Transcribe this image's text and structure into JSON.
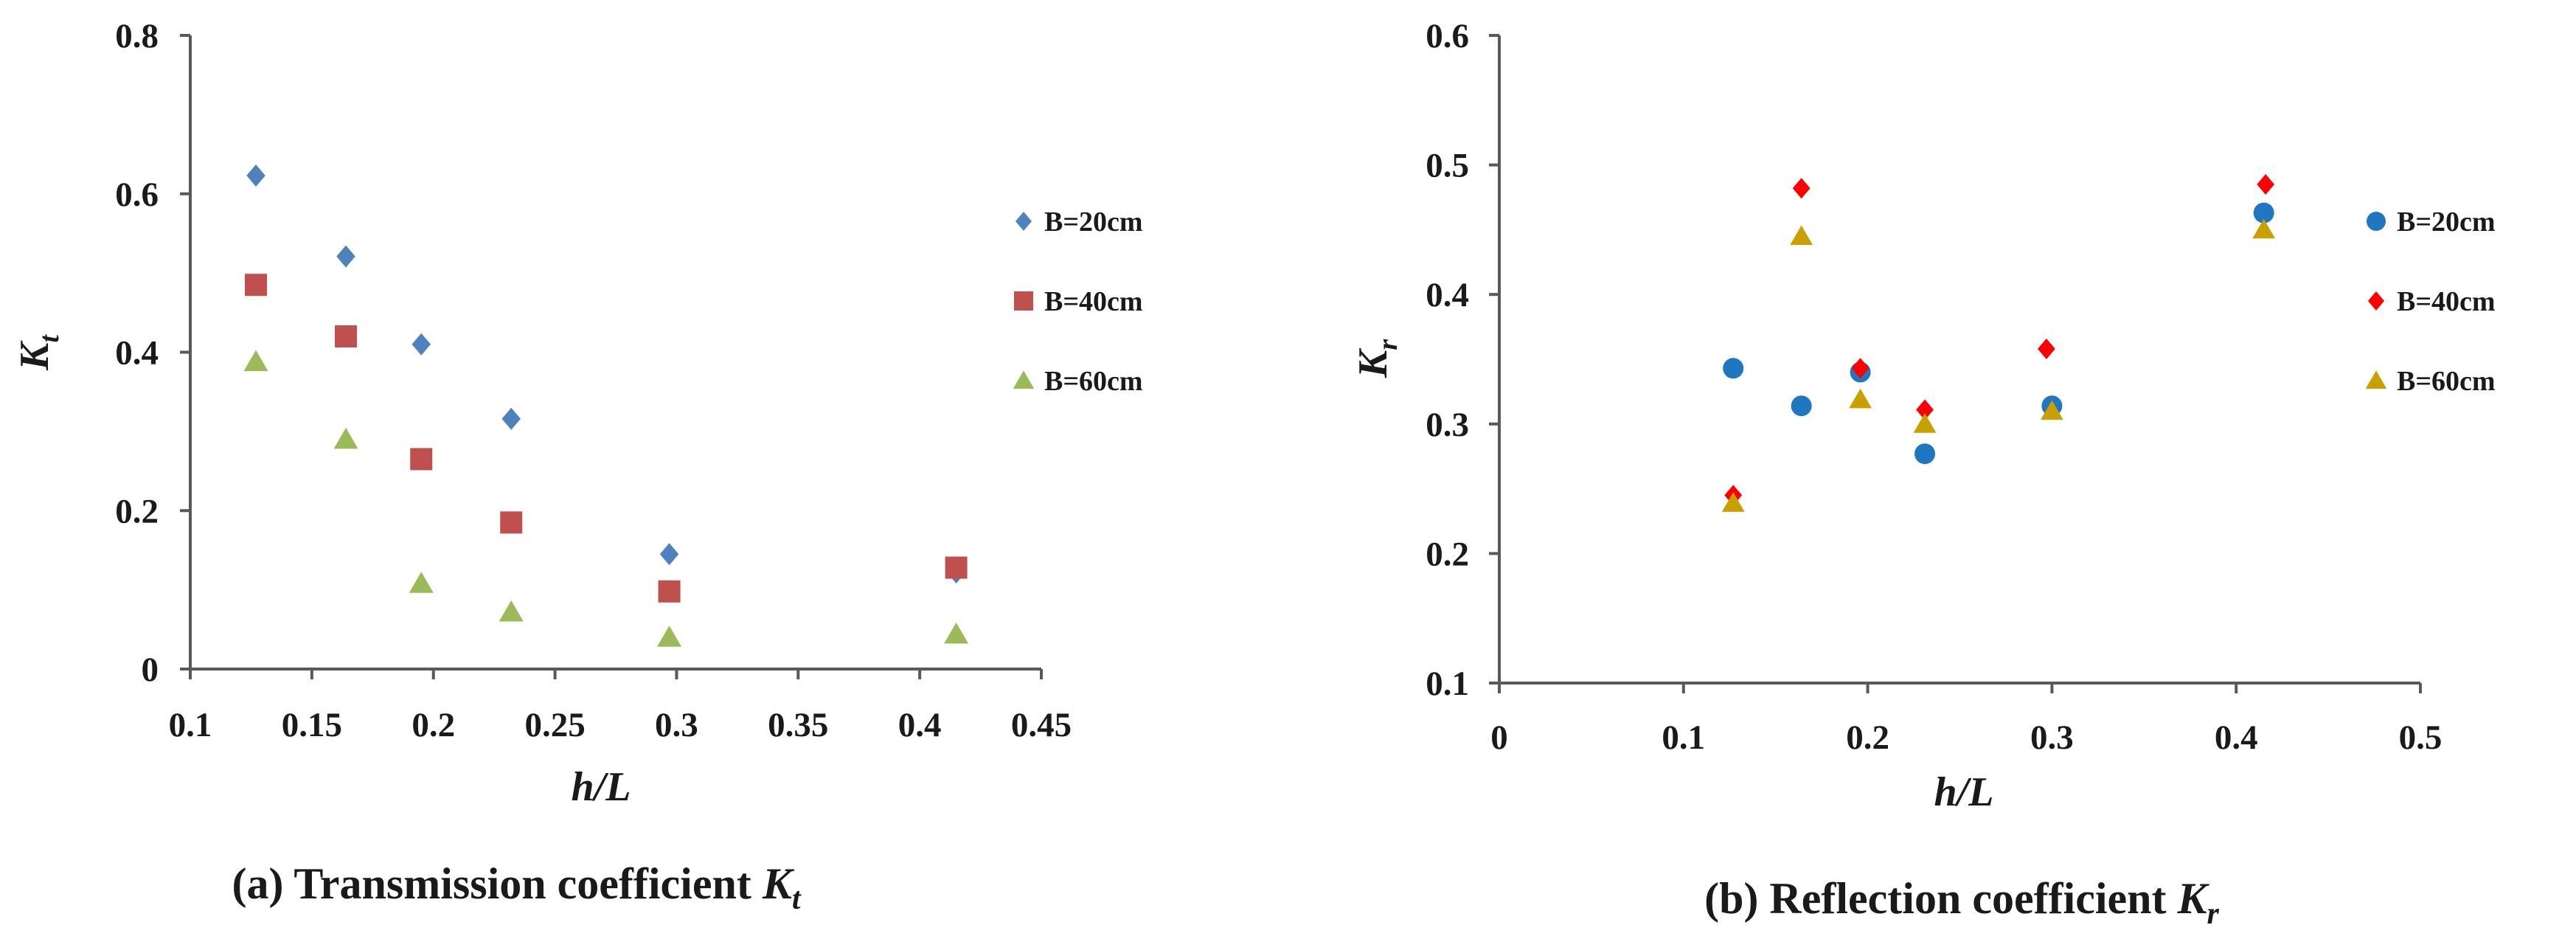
{
  "chart_data": [
    {
      "type": "scatter",
      "panel": "a",
      "caption_prefix": "(a) Transmission coefficient ",
      "caption_symbol": "K",
      "caption_subscript": "t",
      "xlabel": "h/L",
      "ylabel_symbol": "K",
      "ylabel_subscript": "t",
      "xlim": [
        0.1,
        0.45
      ],
      "ylim": [
        0,
        0.8
      ],
      "xticks": [
        0.1,
        0.15,
        0.2,
        0.25,
        0.3,
        0.35,
        0.4,
        0.45
      ],
      "yticks": [
        0,
        0.2,
        0.4,
        0.6,
        0.8
      ],
      "xtick_labels": [
        "0.1",
        "0.15",
        "0.2",
        "0.25",
        "0.3",
        "0.35",
        "0.4",
        "0.45"
      ],
      "ytick_labels": [
        "0",
        "0.2",
        "0.4",
        "0.6",
        "0.8"
      ],
      "legend_position": "right",
      "series": [
        {
          "name": "B=20cm",
          "marker": "diamond",
          "color": "#4f81bd",
          "x": [
            0.127,
            0.164,
            0.195,
            0.232,
            0.297,
            0.415
          ],
          "y": [
            0.623,
            0.521,
            0.41,
            0.316,
            0.145,
            0.122
          ]
        },
        {
          "name": "B=40cm",
          "marker": "square",
          "color": "#c0504d",
          "x": [
            0.127,
            0.164,
            0.195,
            0.232,
            0.297,
            0.415
          ],
          "y": [
            0.485,
            0.42,
            0.265,
            0.185,
            0.098,
            0.128
          ]
        },
        {
          "name": "B=60cm",
          "marker": "triangle",
          "color": "#9bbb59",
          "x": [
            0.127,
            0.164,
            0.195,
            0.232,
            0.297,
            0.415
          ],
          "y": [
            0.388,
            0.29,
            0.108,
            0.072,
            0.04,
            0.044
          ]
        }
      ]
    },
    {
      "type": "scatter",
      "panel": "b",
      "caption_prefix": "(b) Reflection coefficient ",
      "caption_symbol": "K",
      "caption_subscript": "r",
      "xlabel": "h/L",
      "ylabel_symbol": "K",
      "ylabel_subscript": "r",
      "xlim": [
        0,
        0.5
      ],
      "ylim": [
        0.1,
        0.6
      ],
      "xticks": [
        0,
        0.1,
        0.2,
        0.3,
        0.4,
        0.5
      ],
      "yticks": [
        0.1,
        0.2,
        0.3,
        0.4,
        0.5,
        0.6
      ],
      "xtick_labels": [
        "0",
        "0.1",
        "0.2",
        "0.3",
        "0.4",
        "0.5"
      ],
      "ytick_labels": [
        "0.1",
        "0.2",
        "0.3",
        "0.4",
        "0.5",
        "0.6"
      ],
      "legend_position": "right",
      "series": [
        {
          "name": "B=20cm",
          "marker": "circle",
          "color": "#1f77c0",
          "x": [
            0.127,
            0.164,
            0.196,
            0.231,
            0.3,
            0.415
          ],
          "y": [
            0.343,
            0.314,
            0.34,
            0.277,
            0.314,
            0.463
          ]
        },
        {
          "name": "B=40cm",
          "marker": "diamond",
          "color": "#ff0000",
          "x": [
            0.127,
            0.164,
            0.196,
            0.231,
            0.297,
            0.416
          ],
          "y": [
            0.245,
            0.482,
            0.343,
            0.311,
            0.358,
            0.485
          ]
        },
        {
          "name": "B=60cm",
          "marker": "triangle",
          "color": "#c8a000",
          "x": [
            0.127,
            0.164,
            0.196,
            0.231,
            0.3,
            0.415
          ],
          "y": [
            0.239,
            0.445,
            0.319,
            0.3,
            0.31,
            0.45
          ]
        }
      ]
    }
  ]
}
